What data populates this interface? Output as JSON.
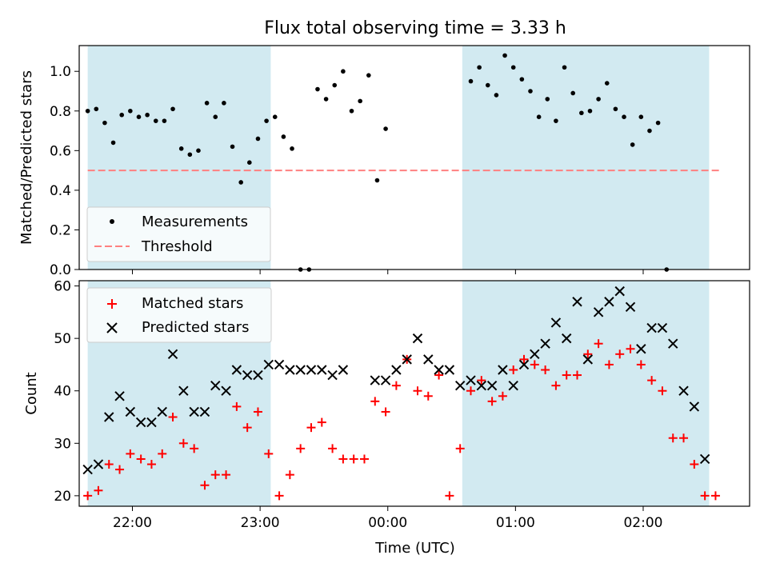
{
  "chart_data": [
    {
      "type": "scatter",
      "title": "Flux total observing time = 3.33 h",
      "xlabel": "",
      "ylabel": "Matched/Predicted stars",
      "x_time_range": [
        "21:35",
        "02:50"
      ],
      "ylim": [
        0,
        1.13
      ],
      "yticks": [
        "0.0",
        "0.2",
        "0.4",
        "0.6",
        "0.8",
        "1.0"
      ],
      "legend_position": "lower-left",
      "shaded_intervals": [
        [
          "21:39",
          "23:05"
        ],
        [
          "00:35",
          "02:31"
        ]
      ],
      "shade_color": "#add8e6",
      "series": [
        {
          "name": "Measurements",
          "color": "#000000",
          "marker": "dot",
          "points": [
            [
              "21:39",
              0.8
            ],
            [
              "21:43",
              0.81
            ],
            [
              "21:47",
              0.74
            ],
            [
              "21:51",
              0.64
            ],
            [
              "21:55",
              0.78
            ],
            [
              "21:59",
              0.8
            ],
            [
              "22:03",
              0.77
            ],
            [
              "22:07",
              0.78
            ],
            [
              "22:11",
              0.75
            ],
            [
              "22:15",
              0.75
            ],
            [
              "22:19",
              0.81
            ],
            [
              "22:23",
              0.61
            ],
            [
              "22:27",
              0.58
            ],
            [
              "22:31",
              0.6
            ],
            [
              "22:35",
              0.84
            ],
            [
              "22:39",
              0.77
            ],
            [
              "22:43",
              0.84
            ],
            [
              "22:47",
              0.62
            ],
            [
              "22:51",
              0.44
            ],
            [
              "22:55",
              0.54
            ],
            [
              "22:59",
              0.66
            ],
            [
              "23:03",
              0.75
            ],
            [
              "23:07",
              0.77
            ],
            [
              "23:11",
              0.67
            ],
            [
              "23:15",
              0.61
            ],
            [
              "23:19",
              0.0
            ],
            [
              "23:23",
              0.0
            ],
            [
              "23:27",
              0.91
            ],
            [
              "23:31",
              0.86
            ],
            [
              "23:35",
              0.93
            ],
            [
              "23:39",
              1.0
            ],
            [
              "23:43",
              0.8
            ],
            [
              "23:47",
              0.85
            ],
            [
              "23:51",
              0.98
            ],
            [
              "23:55",
              0.45
            ],
            [
              "23:59",
              0.71
            ],
            [
              "00:39",
              0.95
            ],
            [
              "00:43",
              1.02
            ],
            [
              "00:47",
              0.93
            ],
            [
              "00:51",
              0.88
            ],
            [
              "00:55",
              1.08
            ],
            [
              "00:59",
              1.02
            ],
            [
              "01:03",
              0.96
            ],
            [
              "01:07",
              0.9
            ],
            [
              "01:11",
              0.77
            ],
            [
              "01:15",
              0.86
            ],
            [
              "01:19",
              0.75
            ],
            [
              "01:23",
              1.02
            ],
            [
              "01:27",
              0.89
            ],
            [
              "01:31",
              0.79
            ],
            [
              "01:35",
              0.8
            ],
            [
              "01:39",
              0.86
            ],
            [
              "01:43",
              0.94
            ],
            [
              "01:47",
              0.81
            ],
            [
              "01:51",
              0.77
            ],
            [
              "01:55",
              0.63
            ],
            [
              "01:59",
              0.77
            ],
            [
              "02:03",
              0.7
            ],
            [
              "02:07",
              0.74
            ],
            [
              "02:11",
              0.0
            ]
          ]
        },
        {
          "name": "Threshold",
          "color": "#ff8080",
          "style": "dashed",
          "x_range": [
            "21:39",
            "02:37"
          ],
          "value": 0.5
        }
      ]
    },
    {
      "type": "scatter",
      "title": "",
      "xlabel": "Time (UTC)",
      "ylabel": "Count",
      "x_time_range": [
        "21:35",
        "02:50"
      ],
      "xticks": [
        "22:00",
        "23:00",
        "00:00",
        "01:00",
        "02:00"
      ],
      "ylim": [
        18,
        61
      ],
      "yticks": [
        "20",
        "30",
        "40",
        "50",
        "60"
      ],
      "legend_position": "upper-left",
      "shaded_intervals": [
        [
          "21:39",
          "23:05"
        ],
        [
          "00:35",
          "02:31"
        ]
      ],
      "shade_color": "#add8e6",
      "series": [
        {
          "name": "Matched stars",
          "color": "#ff0000",
          "marker": "plus",
          "points": [
            [
              "21:39",
              20
            ],
            [
              "21:44",
              21
            ],
            [
              "21:49",
              26
            ],
            [
              "21:54",
              25
            ],
            [
              "21:59",
              28
            ],
            [
              "22:04",
              27
            ],
            [
              "22:09",
              26
            ],
            [
              "22:14",
              28
            ],
            [
              "22:19",
              35
            ],
            [
              "22:24",
              30
            ],
            [
              "22:29",
              29
            ],
            [
              "22:34",
              22
            ],
            [
              "22:39",
              24
            ],
            [
              "22:44",
              24
            ],
            [
              "22:49",
              37
            ],
            [
              "22:54",
              33
            ],
            [
              "22:59",
              36
            ],
            [
              "23:04",
              28
            ],
            [
              "23:09",
              20
            ],
            [
              "23:14",
              24
            ],
            [
              "23:19",
              29
            ],
            [
              "23:24",
              33
            ],
            [
              "23:29",
              34
            ],
            [
              "23:34",
              29
            ],
            [
              "23:39",
              27
            ],
            [
              "23:44",
              27
            ],
            [
              "23:49",
              27
            ],
            [
              "23:54",
              38
            ],
            [
              "23:59",
              36
            ],
            [
              "00:04",
              41
            ],
            [
              "00:09",
              46
            ],
            [
              "00:14",
              40
            ],
            [
              "00:19",
              39
            ],
            [
              "00:24",
              43
            ],
            [
              "00:29",
              20
            ],
            [
              "00:34",
              29
            ],
            [
              "00:39",
              40
            ],
            [
              "00:44",
              42
            ],
            [
              "00:49",
              38
            ],
            [
              "00:54",
              39
            ],
            [
              "00:59",
              44
            ],
            [
              "01:04",
              46
            ],
            [
              "01:09",
              45
            ],
            [
              "01:14",
              44
            ],
            [
              "01:19",
              41
            ],
            [
              "01:24",
              43
            ],
            [
              "01:29",
              43
            ],
            [
              "01:34",
              47
            ],
            [
              "01:39",
              49
            ],
            [
              "01:44",
              45
            ],
            [
              "01:49",
              47
            ],
            [
              "01:54",
              48
            ],
            [
              "01:59",
              45
            ],
            [
              "02:04",
              42
            ],
            [
              "02:09",
              40
            ],
            [
              "02:14",
              31
            ],
            [
              "02:19",
              31
            ],
            [
              "02:24",
              26
            ],
            [
              "02:29",
              20
            ],
            [
              "02:34",
              20
            ]
          ]
        },
        {
          "name": "Predicted stars",
          "color": "#000000",
          "marker": "x",
          "points": [
            [
              "21:39",
              25
            ],
            [
              "21:44",
              26
            ],
            [
              "21:49",
              35
            ],
            [
              "21:54",
              39
            ],
            [
              "21:59",
              36
            ],
            [
              "22:04",
              34
            ],
            [
              "22:09",
              34
            ],
            [
              "22:14",
              36
            ],
            [
              "22:19",
              47
            ],
            [
              "22:24",
              40
            ],
            [
              "22:29",
              36
            ],
            [
              "22:34",
              36
            ],
            [
              "22:39",
              41
            ],
            [
              "22:44",
              40
            ],
            [
              "22:49",
              44
            ],
            [
              "22:54",
              43
            ],
            [
              "22:59",
              43
            ],
            [
              "23:04",
              45
            ],
            [
              "23:09",
              45
            ],
            [
              "23:14",
              44
            ],
            [
              "23:19",
              44
            ],
            [
              "23:24",
              44
            ],
            [
              "23:29",
              44
            ],
            [
              "23:34",
              43
            ],
            [
              "23:39",
              44
            ],
            [
              "23:54",
              42
            ],
            [
              "23:59",
              42
            ],
            [
              "00:04",
              44
            ],
            [
              "00:09",
              46
            ],
            [
              "00:14",
              50
            ],
            [
              "00:19",
              46
            ],
            [
              "00:24",
              44
            ],
            [
              "00:29",
              44
            ],
            [
              "00:34",
              41
            ],
            [
              "00:39",
              42
            ],
            [
              "00:44",
              41
            ],
            [
              "00:49",
              41
            ],
            [
              "00:54",
              44
            ],
            [
              "00:59",
              41
            ],
            [
              "01:04",
              45
            ],
            [
              "01:09",
              47
            ],
            [
              "01:14",
              49
            ],
            [
              "01:19",
              53
            ],
            [
              "01:24",
              50
            ],
            [
              "01:29",
              57
            ],
            [
              "01:34",
              46
            ],
            [
              "01:39",
              55
            ],
            [
              "01:44",
              57
            ],
            [
              "01:49",
              59
            ],
            [
              "01:54",
              56
            ],
            [
              "01:59",
              48
            ],
            [
              "02:04",
              52
            ],
            [
              "02:09",
              52
            ],
            [
              "02:14",
              49
            ],
            [
              "02:19",
              40
            ],
            [
              "02:24",
              37
            ],
            [
              "02:29",
              27
            ]
          ]
        }
      ]
    }
  ]
}
